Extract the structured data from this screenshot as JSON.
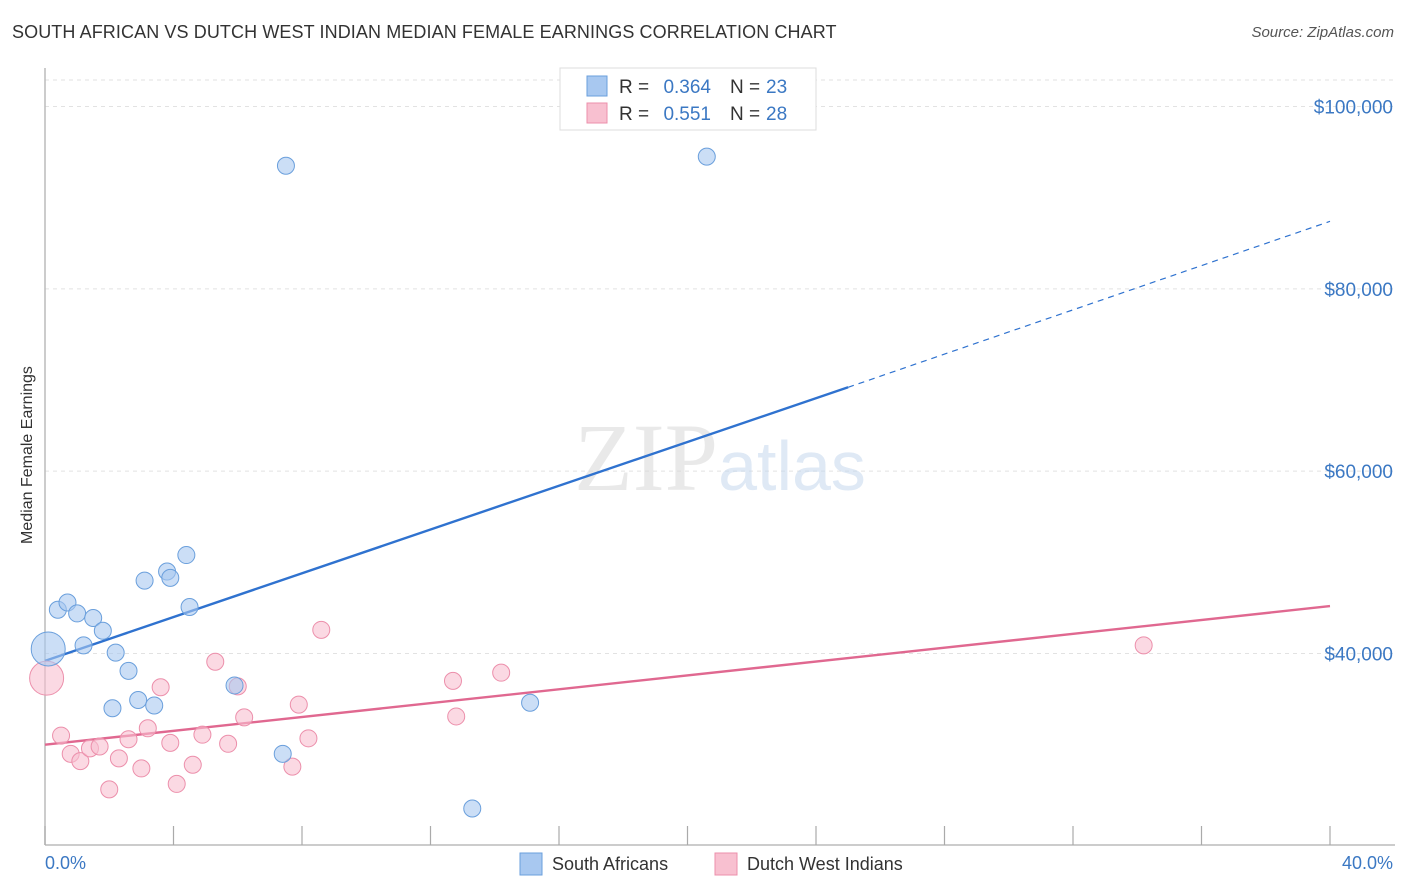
{
  "chart_data": {
    "type": "scatter",
    "title": "SOUTH AFRICAN VS DUTCH WEST INDIAN MEDIAN FEMALE EARNINGS CORRELATION CHART",
    "source": "Source: ZipAtlas.com",
    "xlabel": "",
    "ylabel": "Median Female Earnings",
    "xlim": [
      0,
      40
    ],
    "ylim": [
      19000,
      104000
    ],
    "x_tick_labels": [
      "0.0%",
      "40.0%"
    ],
    "y_ticks": [
      40000,
      60000,
      80000,
      100000
    ],
    "y_tick_labels": [
      "$40,000",
      "$60,000",
      "$80,000",
      "$100,000"
    ],
    "watermark": "ZIPatlas",
    "legend": {
      "entries": [
        {
          "r_label": "R =",
          "r_value": "0.364",
          "n_label": "N =",
          "n_value": "23"
        },
        {
          "r_label": "R =",
          "r_value": "0.551",
          "n_label": "N =",
          "n_value": "28"
        }
      ]
    },
    "series": [
      {
        "name": "South Africans",
        "color": "#a8c8f0",
        "stroke": "#6a9fdc",
        "line_color": "#2f72cf",
        "trend": {
          "x0": 0,
          "y0": 39200,
          "x1": 25,
          "y1": 69200,
          "x_dash_end": 40,
          "y_dash_end": 87400
        },
        "points": [
          {
            "x": 0.1,
            "y": 40500,
            "big": true
          },
          {
            "x": 0.4,
            "y": 44800
          },
          {
            "x": 0.7,
            "y": 45600
          },
          {
            "x": 1.0,
            "y": 44400
          },
          {
            "x": 1.2,
            "y": 40900
          },
          {
            "x": 1.5,
            "y": 43900
          },
          {
            "x": 1.8,
            "y": 42500
          },
          {
            "x": 2.2,
            "y": 40100
          },
          {
            "x": 2.6,
            "y": 38100
          },
          {
            "x": 2.1,
            "y": 34000
          },
          {
            "x": 2.9,
            "y": 34900
          },
          {
            "x": 3.1,
            "y": 48000
          },
          {
            "x": 3.4,
            "y": 34300
          },
          {
            "x": 3.8,
            "y": 49000
          },
          {
            "x": 3.9,
            "y": 48300
          },
          {
            "x": 4.4,
            "y": 50800
          },
          {
            "x": 4.5,
            "y": 45100
          },
          {
            "x": 5.9,
            "y": 36500
          },
          {
            "x": 7.4,
            "y": 29000
          },
          {
            "x": 7.5,
            "y": 93500
          },
          {
            "x": 13.3,
            "y": 23000
          },
          {
            "x": 15.1,
            "y": 34600
          },
          {
            "x": 20.6,
            "y": 94500
          }
        ]
      },
      {
        "name": "Dutch West Indians",
        "color": "#f8c0d0",
        "stroke": "#ec8fab",
        "line_color": "#e06890",
        "trend": {
          "x0": 0,
          "y0": 30000,
          "x1": 40,
          "y1": 45200
        },
        "points": [
          {
            "x": 0.05,
            "y": 37300,
            "big": true
          },
          {
            "x": 0.5,
            "y": 31000
          },
          {
            "x": 0.8,
            "y": 29000
          },
          {
            "x": 1.1,
            "y": 28200
          },
          {
            "x": 1.4,
            "y": 29600
          },
          {
            "x": 1.7,
            "y": 29800
          },
          {
            "x": 2.0,
            "y": 25100
          },
          {
            "x": 2.3,
            "y": 28500
          },
          {
            "x": 2.6,
            "y": 30600
          },
          {
            "x": 3.0,
            "y": 27400
          },
          {
            "x": 3.2,
            "y": 31800
          },
          {
            "x": 3.6,
            "y": 36300
          },
          {
            "x": 3.9,
            "y": 30200
          },
          {
            "x": 4.1,
            "y": 25700
          },
          {
            "x": 4.6,
            "y": 27800
          },
          {
            "x": 4.9,
            "y": 31100
          },
          {
            "x": 5.3,
            "y": 39100
          },
          {
            "x": 5.7,
            "y": 30100
          },
          {
            "x": 6.0,
            "y": 36400
          },
          {
            "x": 6.2,
            "y": 33000
          },
          {
            "x": 7.7,
            "y": 27600
          },
          {
            "x": 7.9,
            "y": 34400
          },
          {
            "x": 8.2,
            "y": 30700
          },
          {
            "x": 8.6,
            "y": 42600
          },
          {
            "x": 12.7,
            "y": 37000
          },
          {
            "x": 12.8,
            "y": 33100
          },
          {
            "x": 14.2,
            "y": 37900
          },
          {
            "x": 34.2,
            "y": 40900
          }
        ]
      }
    ]
  }
}
